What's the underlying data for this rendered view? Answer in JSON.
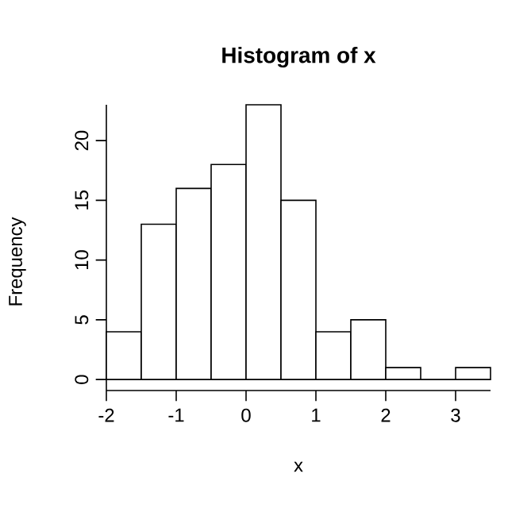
{
  "chart_data": {
    "type": "histogram",
    "title": "Histogram of x",
    "xlabel": "x",
    "ylabel": "Frequency",
    "bins": [
      -2,
      -1.5,
      -1,
      -0.5,
      0,
      0.5,
      1,
      1.5,
      2,
      2.5,
      3,
      3.5
    ],
    "values": [
      4,
      13,
      16,
      18,
      23,
      15,
      4,
      5,
      1,
      0,
      1
    ],
    "xlim": [
      -2,
      3.5
    ],
    "ylim": [
      0,
      23
    ],
    "xticks": [
      -2,
      -1,
      0,
      1,
      2,
      3
    ],
    "yticks": [
      0,
      5,
      10,
      15,
      20
    ]
  }
}
